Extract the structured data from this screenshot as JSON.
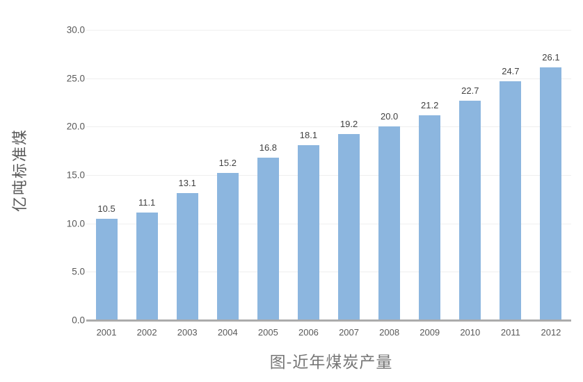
{
  "colors": {
    "bar": "#8CB6DF",
    "gridline": "#EFEFEF",
    "axis_line": "#ABABAB",
    "tick_label": "#595959",
    "data_label": "#404040",
    "axis_title": "#5A5A5A",
    "chart_title": "#767676",
    "background": "#FFFFFF"
  },
  "chart_data": {
    "type": "bar",
    "title": "图-近年煤炭产量",
    "xlabel": "",
    "ylabel": "亿吨标准煤",
    "categories": [
      "2001",
      "2002",
      "2003",
      "2004",
      "2005",
      "2006",
      "2007",
      "2008",
      "2009",
      "2010",
      "2011",
      "2012"
    ],
    "values": [
      10.5,
      11.1,
      13.1,
      15.2,
      16.8,
      18.1,
      19.2,
      20.0,
      21.2,
      22.7,
      24.7,
      26.1
    ],
    "value_labels": [
      "10.5",
      "11.1",
      "13.1",
      "15.2",
      "16.8",
      "18.1",
      "19.2",
      "20.0",
      "21.2",
      "22.7",
      "24.7",
      "26.1"
    ],
    "ylim": [
      0,
      30
    ],
    "ytick_step": 5,
    "ytick_labels": [
      "0.0",
      "5.0",
      "10.0",
      "15.0",
      "20.0",
      "25.0",
      "30.0"
    ],
    "grid": "horizontal",
    "legend": "none",
    "data_labels": true
  }
}
